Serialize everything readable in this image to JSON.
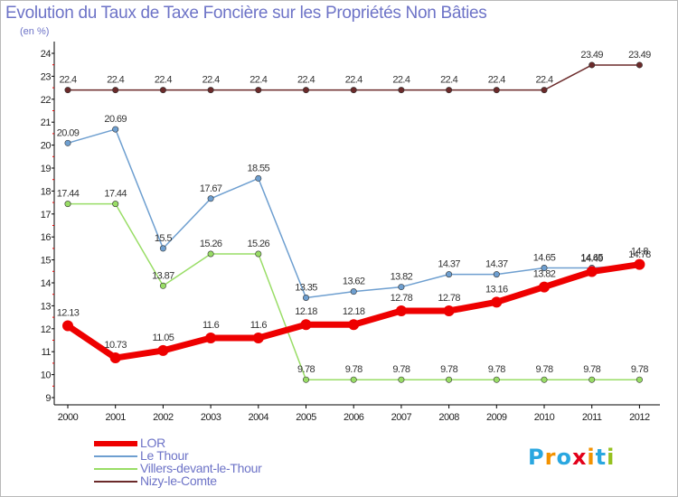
{
  "chart_data": {
    "type": "line",
    "title": "Evolution du Taux de Taxe Foncière sur les Propriétés Non Bâties",
    "ylabel": "(en %)",
    "xlabel": "",
    "ylim": [
      9,
      24
    ],
    "yticks": [
      "9",
      "10",
      "11",
      "12",
      "13",
      "14",
      "15",
      "16",
      "17",
      "18",
      "19",
      "20",
      "21",
      "22",
      "23",
      "24"
    ],
    "categories": [
      "2000",
      "2001",
      "2002",
      "2003",
      "2004",
      "2005",
      "2006",
      "2007",
      "2008",
      "2009",
      "2010",
      "2011",
      "2012"
    ],
    "series": [
      {
        "name": "Nizy-le-Comte",
        "color": "#6b2a2a",
        "values": [
          22.4,
          22.4,
          22.4,
          22.4,
          22.4,
          22.4,
          22.4,
          22.4,
          22.4,
          22.4,
          22.4,
          23.49,
          23.49
        ],
        "labels": [
          "22.4",
          "22.4",
          "22.4",
          "22.4",
          "22.4",
          "22.4",
          "22.4",
          "22.4",
          "22.4",
          "22.4",
          "22.4",
          "23.49",
          "23.49"
        ]
      },
      {
        "name": "Le Thour",
        "color": "#6e9fd0",
        "values": [
          20.09,
          20.69,
          15.5,
          17.67,
          18.55,
          13.35,
          13.62,
          13.82,
          14.37,
          14.37,
          14.65,
          14.65,
          14.78
        ],
        "labels": [
          "20.09",
          "20.69",
          "15.5",
          "17.67",
          "18.55",
          "13.35",
          "13.62",
          "13.82",
          "14.37",
          "14.37",
          "14.65",
          "14.65",
          "14.78"
        ]
      },
      {
        "name": "Villers-devant-le-Thour",
        "color": "#99dd66",
        "values": [
          17.44,
          17.44,
          13.87,
          15.26,
          15.26,
          9.78,
          9.78,
          9.78,
          9.78,
          9.78,
          9.78,
          9.78,
          9.78
        ],
        "labels": [
          "17.44",
          "17.44",
          "13.87",
          "15.26",
          "15.26",
          "9.78",
          "9.78",
          "9.78",
          "9.78",
          "9.78",
          "9.78",
          "9.78",
          "9.78"
        ]
      },
      {
        "name": "LOR",
        "color": "#ee0000",
        "values": [
          12.13,
          10.73,
          11.05,
          11.6,
          11.6,
          12.18,
          12.18,
          12.78,
          12.78,
          13.16,
          13.82,
          14.49,
          14.8
        ],
        "labels": [
          "12.13",
          "10.73",
          "11.05",
          "11.6",
          "11.6",
          "12.18",
          "12.18",
          "12.78",
          "12.78",
          "13.16",
          "13.82",
          "14.49",
          "14.8"
        ]
      }
    ],
    "legend": [
      {
        "name": "LOR",
        "color": "#ee0000",
        "thickness": 6
      },
      {
        "name": "Le Thour",
        "color": "#6e9fd0",
        "thickness": 2
      },
      {
        "name": "Villers-devant-le-Thour",
        "color": "#99dd66",
        "thickness": 2
      },
      {
        "name": "Nizy-le-Comte",
        "color": "#6b2a2a",
        "thickness": 2
      }
    ]
  },
  "logo": {
    "letters": [
      "P",
      "r",
      "o",
      "x",
      "i",
      "t",
      "i"
    ],
    "colors": [
      "#2aa7e0",
      "#f39200",
      "#2aa7e0",
      "#e2001a",
      "#f39200",
      "#2aa7e0",
      "#95c11f"
    ]
  }
}
